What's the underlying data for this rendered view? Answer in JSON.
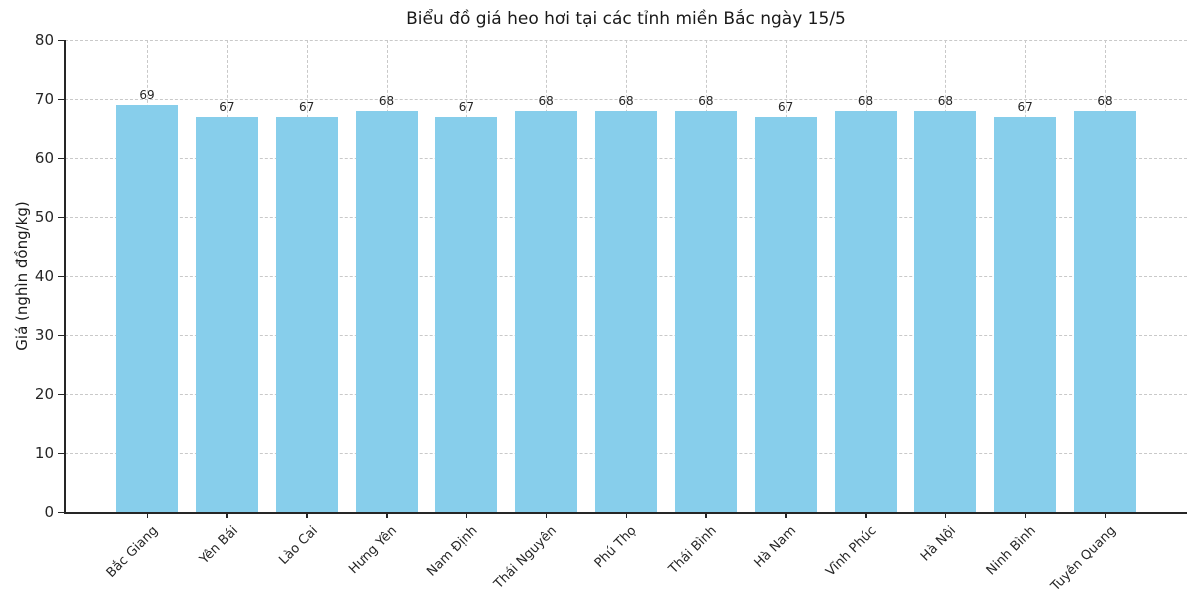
{
  "chart_data": {
    "type": "bar",
    "title": "Biểu đồ giá heo hơi tại các tỉnh miền Bắc ngày 15/5",
    "xlabel": "",
    "ylabel": "Giá (nghìn đồng/kg)",
    "categories": [
      "Bắc Giang",
      "Yên Bái",
      "Lào Cai",
      "Hưng Yên",
      "Nam Định",
      "Thái Nguyên",
      "Phú Thọ",
      "Thái Bình",
      "Hà Nam",
      "Vĩnh Phúc",
      "Hà Nội",
      "Ninh Bình",
      "Tuyên Quang"
    ],
    "values": [
      69,
      67,
      67,
      68,
      67,
      68,
      68,
      68,
      67,
      68,
      68,
      67,
      68
    ],
    "ylim": [
      0,
      80
    ],
    "ytick_step": 10,
    "yticks": [
      0,
      10,
      20,
      30,
      40,
      50,
      60,
      70,
      80
    ],
    "bar_color": "#87CEEB",
    "grid": true,
    "grid_style": "dashed",
    "grid_color": "#c9c9c9",
    "value_labels_shown": true,
    "x_tick_rotation": 45,
    "legend": "none",
    "background_color": "#ffffff"
  }
}
